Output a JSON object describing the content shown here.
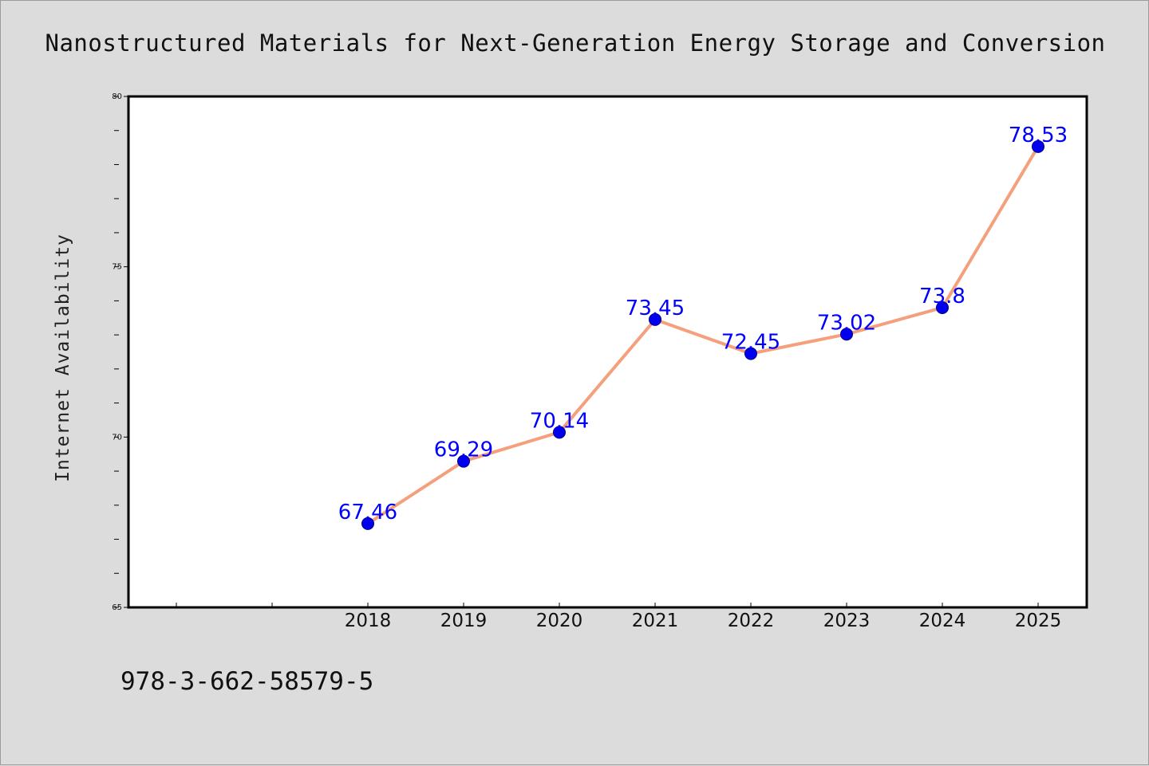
{
  "chart_data": {
    "type": "line",
    "title": "Nanostructured Materials for Next-Generation Energy Storage and Conversion",
    "ylabel": "Internet Availability",
    "xlabel": "",
    "x": [
      "2018",
      "2019",
      "2020",
      "2021",
      "2022",
      "2023",
      "2024",
      "2025"
    ],
    "series": [
      {
        "values": [
          67.46,
          69.29,
          70.14,
          73.45,
          72.45,
          73.02,
          73.8,
          78.53
        ],
        "labels": [
          "67.46",
          "69.29",
          "70.14",
          "73.45",
          "72.45",
          "73.02",
          "73.8",
          "78.53"
        ]
      }
    ],
    "ylim": [
      65,
      80
    ],
    "yticks": [
      "65",
      "70",
      "75",
      "80"
    ],
    "grid": false,
    "line_color": "#f4a07c",
    "marker_color": "#0000ee",
    "label_color": "#0000ff",
    "background_color": "#dcdcdc",
    "plot_background": "#ffffff"
  },
  "footer_text": "978-3-662-58579-5"
}
